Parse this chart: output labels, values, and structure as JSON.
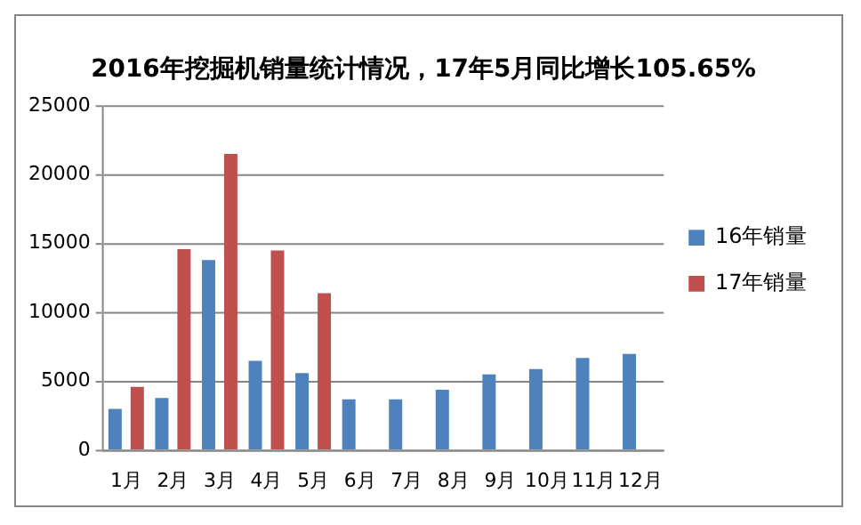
{
  "chart_data": {
    "type": "bar",
    "title": "2016年挖掘机销量统计情况，17年5月同比增长105.65%",
    "categories": [
      "1月",
      "2月",
      "3月",
      "4月",
      "5月",
      "6月",
      "7月",
      "8月",
      "9月",
      "10月",
      "11月",
      "12月"
    ],
    "series": [
      {
        "name": "16年销量",
        "color": "#4f81bd",
        "values": [
          3000,
          3800,
          13800,
          6500,
          5600,
          3700,
          3700,
          4400,
          5500,
          5900,
          6700,
          7000
        ]
      },
      {
        "name": "17年销量",
        "color": "#c0504d",
        "values": [
          4600,
          14600,
          21500,
          14500,
          11400,
          null,
          null,
          null,
          null,
          null,
          null,
          null
        ]
      }
    ],
    "ylim": [
      0,
      25000
    ],
    "yticks": [
      0,
      5000,
      10000,
      15000,
      20000,
      25000
    ],
    "grid": "y",
    "legend": "right"
  }
}
